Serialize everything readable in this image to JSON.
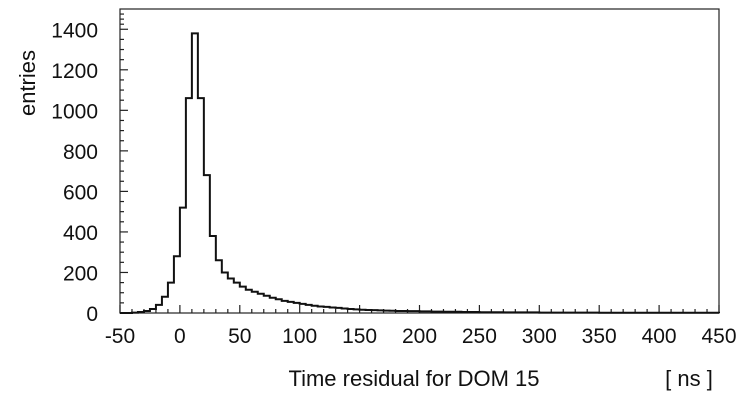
{
  "chart_data": {
    "type": "histogram",
    "title": "",
    "xlabel": "Time residual for DOM 15",
    "xunit": "[ ns ]",
    "ylabel": "entries",
    "xlim": [
      -50,
      450
    ],
    "ylim": [
      0,
      1500
    ],
    "grid": false,
    "legend": "none",
    "x_ticks": [
      -50,
      0,
      50,
      100,
      150,
      200,
      250,
      300,
      350,
      400,
      450
    ],
    "x_tick_labels": [
      "-50",
      "0",
      "50",
      "100",
      "150",
      "200",
      "250",
      "300",
      "350",
      "400",
      "450"
    ],
    "y_ticks": [
      0,
      200,
      400,
      600,
      800,
      1000,
      1200,
      1400
    ],
    "y_tick_labels": [
      "0",
      "200",
      "400",
      "600",
      "800",
      "1000",
      "1200",
      "1400"
    ],
    "bin_width": 5,
    "bin_edges_start": -50,
    "values": [
      0,
      0,
      2,
      5,
      10,
      20,
      40,
      80,
      150,
      280,
      520,
      1060,
      1380,
      1060,
      680,
      380,
      260,
      200,
      170,
      150,
      130,
      115,
      105,
      95,
      85,
      75,
      68,
      60,
      55,
      50,
      45,
      40,
      36,
      32,
      30,
      27,
      25,
      22,
      20,
      18,
      16,
      15,
      14,
      13,
      12,
      11,
      10,
      10,
      9,
      9,
      8,
      8,
      7,
      7,
      6,
      6,
      6,
      5,
      5,
      5,
      4,
      4,
      4,
      4,
      3,
      3,
      3,
      3,
      3,
      3,
      2,
      2,
      2,
      2,
      2,
      2,
      2,
      2,
      2,
      2,
      1,
      1,
      1,
      1,
      1,
      1,
      1,
      1,
      1,
      1,
      1,
      1,
      1,
      1,
      1,
      1,
      1,
      1,
      1,
      1
    ]
  }
}
